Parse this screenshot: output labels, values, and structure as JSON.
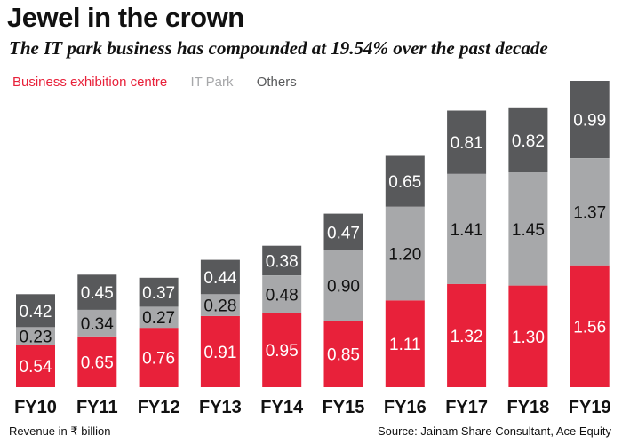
{
  "title": "Jewel in the crown",
  "subtitle": "The IT park business has compounded at 19.54% over the past decade",
  "footer": {
    "unit_note": "Revenue in ₹ billion",
    "source": "Source: Jainam Share Consultant, Ace Equity"
  },
  "colors": {
    "business_exhibition_centre": "#e8213a",
    "it_park": "#a7a8aa",
    "others": "#58595b"
  },
  "chart_data": {
    "type": "bar",
    "stacked": true,
    "categories": [
      "FY10",
      "FY11",
      "FY12",
      "FY13",
      "FY14",
      "FY15",
      "FY16",
      "FY17",
      "FY18",
      "FY19"
    ],
    "series": [
      {
        "name": "Business exhibition centre",
        "values": [
          0.54,
          0.65,
          0.76,
          0.91,
          0.95,
          0.85,
          1.11,
          1.32,
          1.3,
          1.56
        ]
      },
      {
        "name": "IT Park",
        "values": [
          0.23,
          0.34,
          0.27,
          0.28,
          0.48,
          0.9,
          1.2,
          1.41,
          1.45,
          1.37
        ]
      },
      {
        "name": "Others",
        "values": [
          0.42,
          0.45,
          0.37,
          0.44,
          0.38,
          0.47,
          0.65,
          0.81,
          0.82,
          0.99
        ]
      }
    ],
    "value_labels": [
      [
        "0.54",
        "0.65",
        "0.76",
        "0.91",
        "0.95",
        "0.85",
        "1.11",
        "1.32",
        "1.30",
        "1.56"
      ],
      [
        "0.23",
        "0.34",
        "0.27",
        "0.28",
        "0.48",
        "0.90",
        "1.20",
        "1.41",
        "1.45",
        "1.37"
      ],
      [
        "0.42",
        "0.45",
        "0.37",
        "0.44",
        "0.38",
        "0.47",
        "0.65",
        "0.81",
        "0.82",
        "0.99"
      ]
    ],
    "legend_position": "top-left",
    "grid": false
  }
}
